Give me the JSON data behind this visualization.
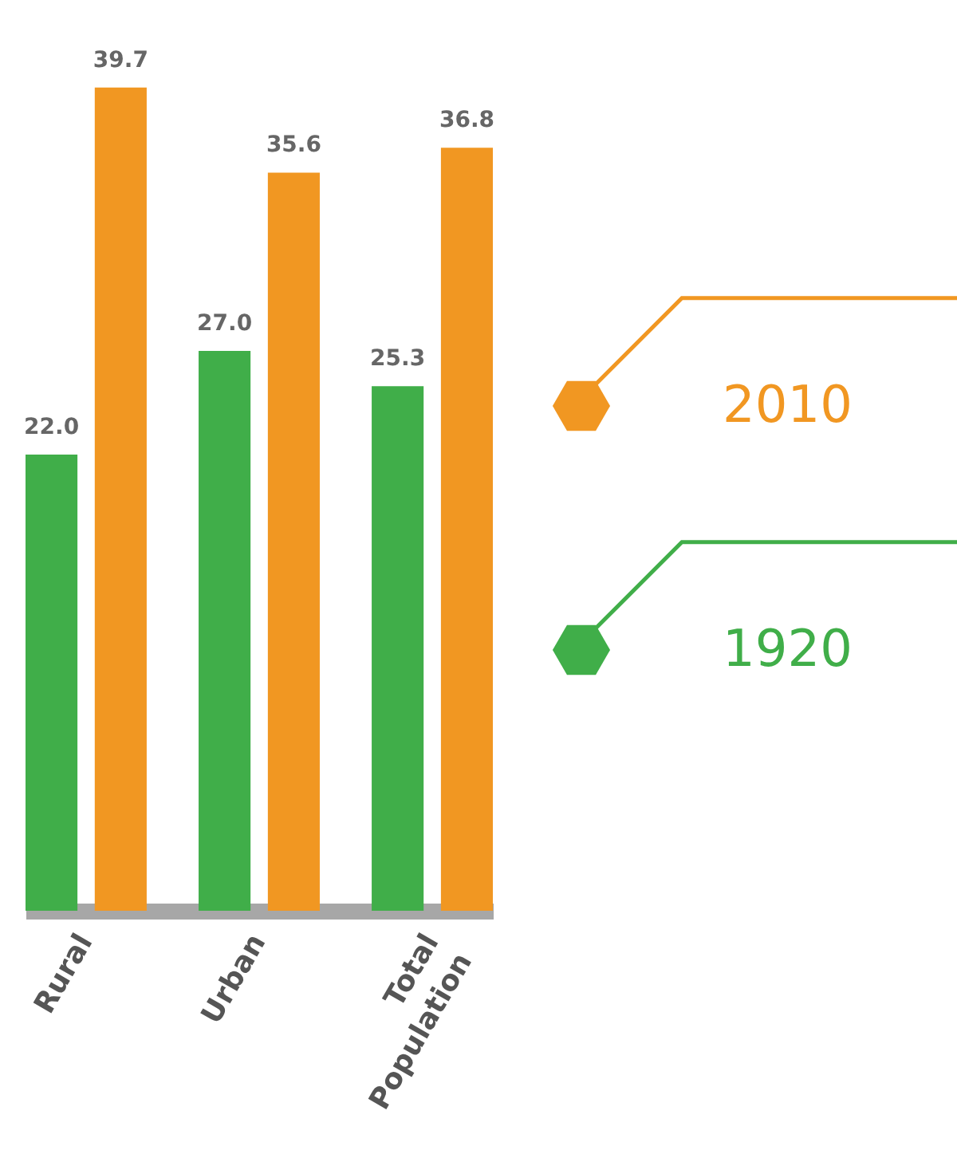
{
  "chart_data": {
    "type": "bar",
    "categories": [
      "Rural",
      "Urban",
      "Total Population"
    ],
    "series": [
      {
        "name": "1920",
        "color": "#40ae49",
        "values": [
          22.0,
          27.0,
          25.3
        ],
        "value_labels": [
          "22.0",
          "27.0",
          "25.3"
        ]
      },
      {
        "name": "2010",
        "color": "#f19722",
        "values": [
          39.7,
          35.6,
          36.8
        ],
        "value_labels": [
          "39.7",
          "35.6",
          "36.8"
        ]
      }
    ],
    "legend": "right",
    "tick_labels": "x"
  }
}
